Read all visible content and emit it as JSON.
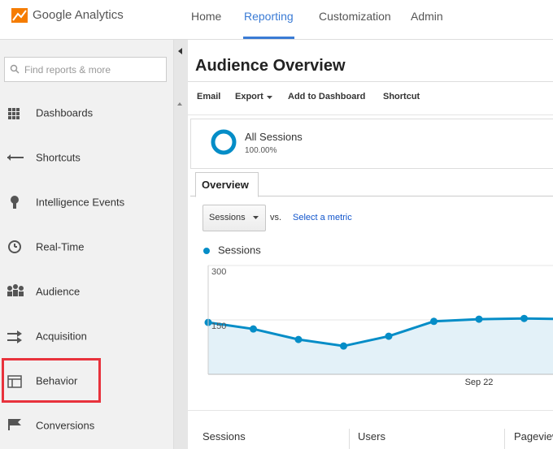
{
  "header": {
    "logo": "Google Analytics",
    "nav": [
      {
        "label": "Home",
        "active": false
      },
      {
        "label": "Reporting",
        "active": true
      },
      {
        "label": "Customization",
        "active": false
      },
      {
        "label": "Admin",
        "active": false
      }
    ]
  },
  "sidebar": {
    "search_placeholder": "Find reports & more",
    "items": [
      {
        "label": "Dashboards",
        "highlighted": false
      },
      {
        "label": "Shortcuts",
        "highlighted": false
      },
      {
        "label": "Intelligence Events",
        "highlighted": false
      },
      {
        "label": "Real-Time",
        "highlighted": false
      },
      {
        "label": "Audience",
        "highlighted": false
      },
      {
        "label": "Acquisition",
        "highlighted": false
      },
      {
        "label": "Behavior",
        "highlighted": true
      },
      {
        "label": "Conversions",
        "highlighted": false
      }
    ]
  },
  "main": {
    "title": "Audience Overview",
    "toolbar": [
      "Email",
      "Export",
      "Add to Dashboard",
      "Shortcut"
    ],
    "segment": {
      "name": "All Sessions",
      "percent": "100.00%"
    },
    "tab": "Overview",
    "metric_select": "Sessions",
    "vs": "vs.",
    "select_metric": "Select a metric",
    "scorecards": [
      "Sessions",
      "Users",
      "Pageview"
    ]
  },
  "chart_data": {
    "type": "area",
    "categories": [
      null,
      null,
      null,
      null,
      null,
      null,
      "Sep 22",
      null,
      null
    ],
    "series": [
      {
        "name": "Sessions",
        "color": "#058dc7",
        "values": [
          143,
          125,
          96,
          78,
          105,
          146,
          152,
          154,
          152
        ]
      }
    ],
    "ylim": [
      0,
      300
    ],
    "yticks": [
      150,
      300
    ],
    "grid": true
  }
}
